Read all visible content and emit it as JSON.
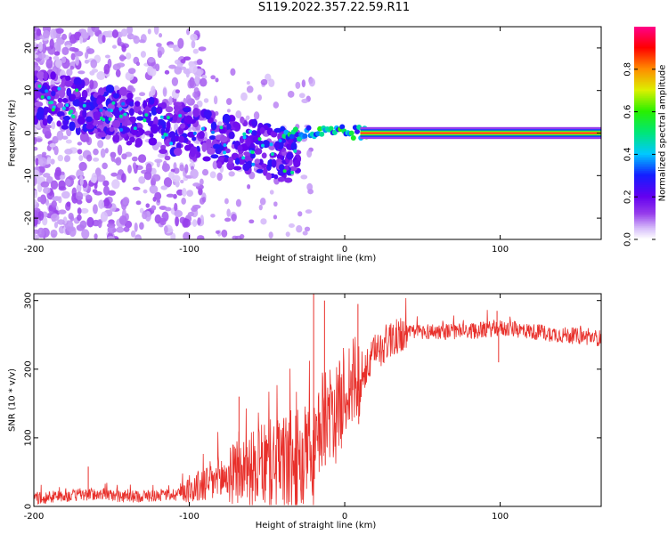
{
  "figure_title": "S119.2022.357.22.59.R11",
  "chart_data": [
    {
      "type": "heatmap",
      "title": "S119.2022.357.22.59.R11",
      "xlabel": "Height of straight line (km)",
      "ylabel": "Frequency (Hz)",
      "xlim": [
        -200,
        165
      ],
      "ylim": [
        -25,
        25
      ],
      "x_ticks": [
        -200,
        -100,
        0,
        100
      ],
      "y_ticks": [
        -20,
        -10,
        0,
        10,
        20
      ],
      "x_tick_labels": [
        "-200",
        "-100",
        "0",
        "100"
      ],
      "y_tick_labels": [
        "-20",
        "-10",
        "0",
        "10",
        "20"
      ],
      "colorbar": {
        "label": "Normalized spectral amplitude",
        "range": [
          0,
          1
        ],
        "ticks": [
          0.0,
          0.2,
          0.4,
          0.6,
          0.8
        ],
        "tick_labels": [
          "0.0",
          "0.2",
          "0.4",
          "0.6",
          "0.8"
        ],
        "colormap": "rainbow (white-violet-blue-cyan-green-yellow-red-magenta)"
      },
      "features": [
        {
          "name": "dispersed band",
          "x_range": [
            -200,
            -30
          ],
          "frequency_hz_start": 9,
          "frequency_hz_end": -6,
          "amplitude": "0.1-0.3"
        },
        {
          "name": "carrier line",
          "x_range": [
            10,
            165
          ],
          "frequency_hz": 0,
          "amplitude": 1.0
        }
      ]
    },
    {
      "type": "line",
      "xlabel": "Height of straight line (km)",
      "ylabel": "SNR (10 * v/v)",
      "xlim": [
        -200,
        165
      ],
      "ylim": [
        0,
        310
      ],
      "x_ticks": [
        -200,
        -100,
        0,
        100
      ],
      "y_ticks": [
        0,
        100,
        200,
        300
      ],
      "x_tick_labels": [
        "-200",
        "-100",
        "0",
        "100"
      ],
      "y_tick_labels": [
        "0",
        "100",
        "200",
        "300"
      ],
      "color": "#e8302b",
      "x": [
        -200,
        -180,
        -160,
        -140,
        -120,
        -110,
        -100,
        -90,
        -80,
        -70,
        -60,
        -50,
        -40,
        -30,
        -20,
        -12,
        -8,
        -4,
        0,
        5,
        10,
        15,
        20,
        30,
        40,
        50,
        60,
        80,
        100,
        120,
        140,
        165
      ],
      "values": [
        12,
        15,
        18,
        14,
        16,
        18,
        24,
        32,
        40,
        48,
        55,
        60,
        65,
        60,
        70,
        150,
        120,
        140,
        170,
        180,
        175,
        205,
        225,
        245,
        252,
        255,
        255,
        255,
        260,
        255,
        250,
        245
      ]
    }
  ]
}
